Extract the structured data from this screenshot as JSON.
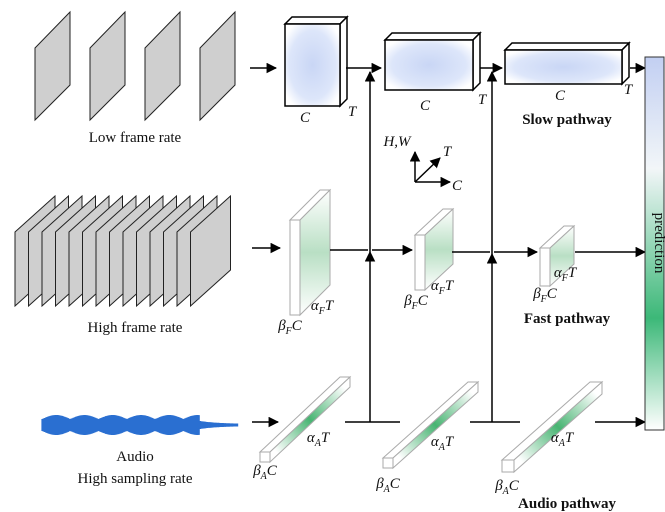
{
  "inputs": {
    "slow": "Low frame rate",
    "fast": "High frame rate",
    "audio": [
      "Audio",
      "High sampling rate"
    ]
  },
  "pathways": {
    "slow": "Slow pathway",
    "fast": "Fast pathway",
    "audio": "Audio pathway"
  },
  "prediction": "prediction",
  "axes": {
    "vertical": "H,W",
    "depth": "T",
    "horizontal": "C"
  },
  "slow_labels": {
    "width": "C",
    "depth": "T"
  },
  "fast_labels": {
    "alpha": {
      "base": "α",
      "sub": "F",
      "tail": "T"
    },
    "beta": {
      "base": "β",
      "sub": "F",
      "tail": "C"
    }
  },
  "audio_labels": {
    "alpha": {
      "base": "α",
      "sub": "A",
      "tail": "T"
    },
    "beta": {
      "base": "β",
      "sub": "A",
      "tail": "C"
    }
  }
}
